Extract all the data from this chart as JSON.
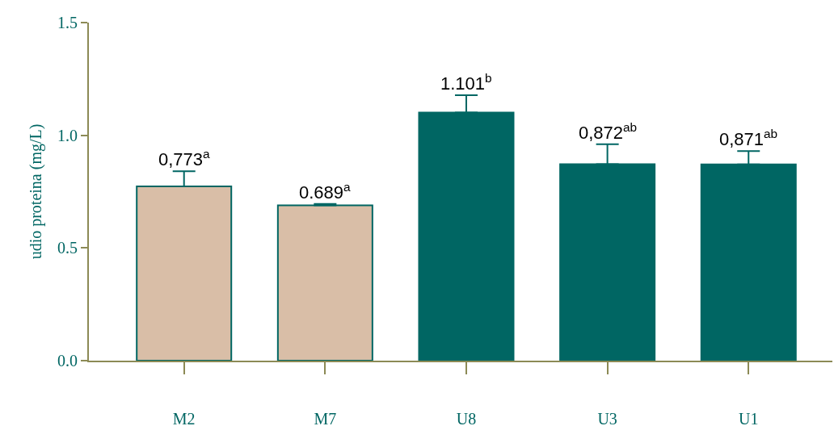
{
  "chart_data": {
    "type": "bar",
    "ylabel": "udio proteina (mg/L)",
    "categories": [
      "M2",
      "M7",
      "U8",
      "U3",
      "U1"
    ],
    "values": [
      0.773,
      0.689,
      1.101,
      0.872,
      0.871
    ],
    "colors": [
      "#d9bea7",
      "#d9bea7",
      "#006663",
      "#006663",
      "#006663"
    ],
    "errors": [
      [
        0.773,
        0.84
      ],
      [
        0.689,
        0.695
      ],
      [
        1.101,
        1.178
      ],
      [
        0.872,
        0.96
      ],
      [
        0.871,
        0.93
      ]
    ],
    "value_labels": [
      "0,773$^{a}$",
      "0.689$^{a}$",
      "1.101$^{b}$",
      "0,872$^{ab}$",
      "0,871$^{ab}$"
    ],
    "ylim": [
      0,
      1.5
    ],
    "yticks": [
      {
        "value": 0,
        "label": "0.0"
      },
      {
        "value": 0.5,
        "label": "0.5"
      },
      {
        "value": 1,
        "label": "1.0"
      },
      {
        "value": 1.5,
        "label": "1.5"
      }
    ],
    "grid": false
  }
}
